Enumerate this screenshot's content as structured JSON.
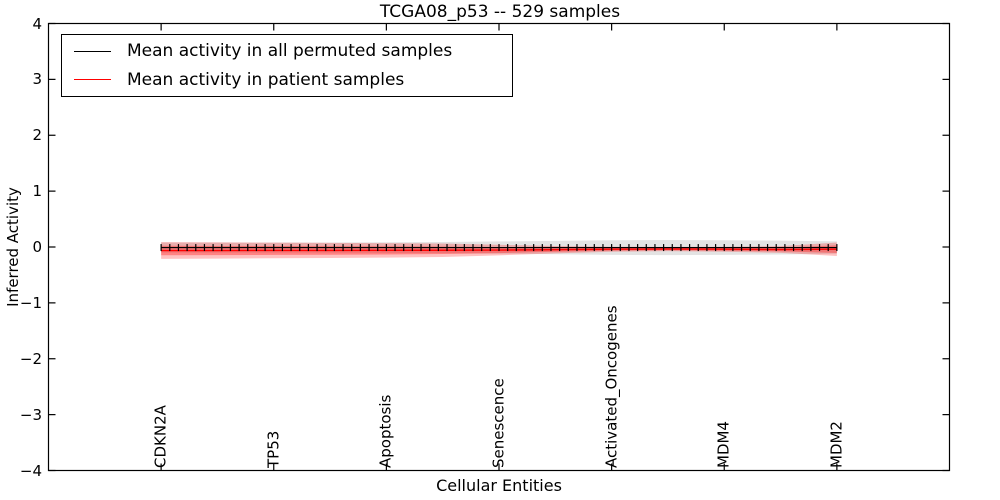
{
  "title": "TCGA08_p53 -- 529 samples",
  "legend": {
    "items": [
      {
        "label": "Mean activity in all permuted samples",
        "color": "#000000"
      },
      {
        "label": "Mean activity in patient samples",
        "color": "#ff0000"
      }
    ]
  },
  "chart_data": {
    "type": "line",
    "title": "TCGA08_p53 -- 529 samples",
    "xlabel": "Cellular Entities",
    "ylabel": "Inferred Activity",
    "xlim": [
      0,
      8
    ],
    "ylim": [
      -4,
      4
    ],
    "grid": false,
    "legend_position": "upper left",
    "yticks": [
      4,
      3,
      2,
      1,
      0,
      -1,
      -2,
      -3,
      -4
    ],
    "ytick_labels": [
      "4",
      "3",
      "2",
      "1",
      "0",
      "−1",
      "−2",
      "−3",
      "−4"
    ],
    "categories": [
      "CDKN2A",
      "TP53",
      "Apoptosis",
      "Senescence",
      "Activated_Oncogenes",
      "MDM4",
      "MDM2"
    ],
    "category_positions": [
      1,
      2,
      3,
      4,
      5,
      6,
      7
    ],
    "x": [
      1,
      1.5,
      2,
      2.5,
      3,
      3.5,
      4,
      4.5,
      5,
      5.5,
      6,
      6.5,
      7
    ],
    "series": [
      {
        "name": "Mean activity in all permuted samples",
        "color": "#000000",
        "values": [
          -0.01,
          -0.01,
          -0.01,
          -0.01,
          -0.01,
          -0.01,
          -0.01,
          -0.01,
          -0.01,
          -0.01,
          -0.01,
          -0.01,
          -0.01
        ],
        "band_halfwidth": [
          0.09,
          0.09,
          0.09,
          0.09,
          0.095,
          0.1,
          0.11,
          0.12,
          0.13,
          0.135,
          0.13,
          0.125,
          0.11
        ],
        "band_color": "rgba(0,0,0,0.11)",
        "marker": "tick",
        "n_markers": 79
      },
      {
        "name": "Mean activity in patient samples",
        "color": "#ff0000",
        "values": [
          -0.063,
          -0.063,
          -0.062,
          -0.062,
          -0.06,
          -0.058,
          -0.055,
          -0.048,
          -0.04,
          -0.036,
          -0.04,
          -0.045,
          -0.04
        ],
        "band_halfwidth_outer": [
          0.15,
          0.145,
          0.14,
          0.135,
          0.13,
          0.12,
          0.095,
          0.065,
          0.045,
          0.038,
          0.045,
          0.06,
          0.12
        ],
        "band_halfwidth_inner": [
          0.085,
          0.082,
          0.08,
          0.077,
          0.074,
          0.068,
          0.054,
          0.037,
          0.026,
          0.022,
          0.026,
          0.034,
          0.068
        ],
        "band_color_outer": "rgba(255,0,0,0.24)",
        "band_color_inner": "rgba(255,0,0,0.32)"
      }
    ]
  }
}
